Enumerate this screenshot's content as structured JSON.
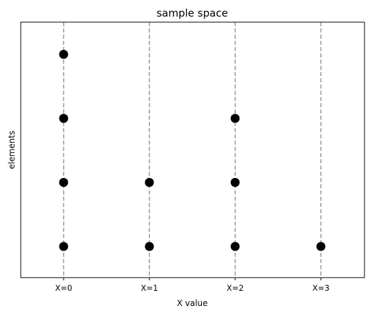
{
  "chart_data": {
    "type": "scatter",
    "title": "sample space",
    "xlabel": "X value",
    "ylabel": "elements",
    "categories": [
      "X=0",
      "X=1",
      "X=2",
      "X=3"
    ],
    "points": [
      {
        "x": "X=0",
        "y": 1
      },
      {
        "x": "X=0",
        "y": 2
      },
      {
        "x": "X=0",
        "y": 3
      },
      {
        "x": "X=0",
        "y": 4
      },
      {
        "x": "X=1",
        "y": 1
      },
      {
        "x": "X=1",
        "y": 2
      },
      {
        "x": "X=2",
        "y": 1
      },
      {
        "x": "X=2",
        "y": 2
      },
      {
        "x": "X=2",
        "y": 3
      },
      {
        "x": "X=3",
        "y": 1
      }
    ],
    "guide_lines": "dashed vertical line at each category",
    "point_color": "#000000",
    "guide_color": "#999999",
    "y_ticks_shown": false,
    "grid": false,
    "legend": "none"
  }
}
